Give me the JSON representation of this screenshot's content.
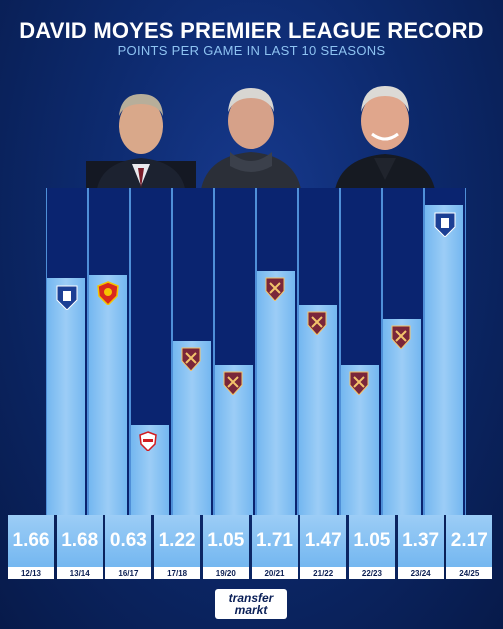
{
  "header": {
    "title": "DAVID MOYES PREMIER LEAGUE RECORD",
    "subtitle": "POINTS PER GAME IN LAST 10 SEASONS"
  },
  "chart_data": {
    "type": "bar",
    "title": "DAVID MOYES PREMIER LEAGUE RECORD",
    "subtitle": "POINTS PER GAME IN LAST 10 SEASONS",
    "xlabel": "",
    "ylabel": "",
    "categories": [
      "12/13",
      "13/14",
      "16/17",
      "17/18",
      "19/20",
      "20/21",
      "21/22",
      "22/23",
      "23/24",
      "24/25"
    ],
    "values": [
      1.66,
      1.68,
      0.63,
      1.22,
      1.05,
      1.71,
      1.47,
      1.05,
      1.37,
      2.17
    ],
    "value_labels": [
      "1.66",
      "1.68",
      "0.63",
      "1.22",
      "1.05",
      "1.71",
      "1.47",
      "1.05",
      "1.37",
      "2.17"
    ],
    "clubs": [
      "everton",
      "manchester-united",
      "sunderland",
      "west-ham",
      "west-ham",
      "west-ham",
      "west-ham",
      "west-ham",
      "west-ham",
      "everton"
    ],
    "ylim": [
      0,
      2.17
    ],
    "grid": false,
    "legend": "none"
  },
  "colors": {
    "background": "#0d2a6e",
    "bar": "#8ac4f4",
    "everton": "#1c3f94",
    "manchester-united": "#da291c",
    "sunderland": "#d11c21",
    "west-ham": "#7a263a"
  },
  "footer": {
    "logo_top": "transfer",
    "logo_bottom": "markt"
  }
}
